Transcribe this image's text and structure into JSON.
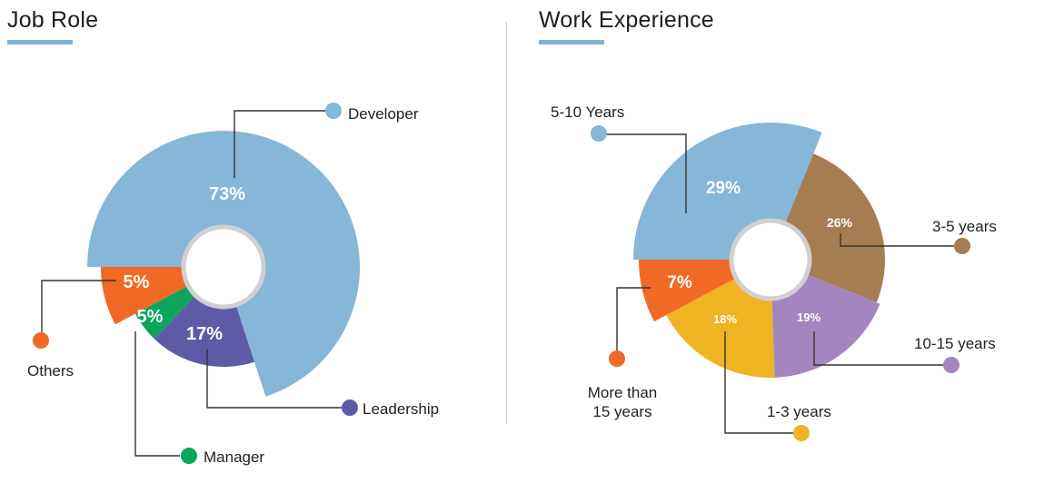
{
  "panels": {
    "left": {
      "title": "Job Role"
    },
    "right": {
      "title": "Work Experience"
    }
  },
  "colors": {
    "accent_bar": "#7fb2d4",
    "hole_ring": "#d0d0d0",
    "leader": "#333333"
  },
  "chart_data": [
    {
      "type": "pie",
      "title": "Job Role",
      "slices": [
        {
          "label": "Developer",
          "value": 73,
          "pct_label": "73%",
          "color": "#86b6d8"
        },
        {
          "label": "Leadership",
          "value": 17,
          "pct_label": "17%",
          "color": "#5f5aa8"
        },
        {
          "label": "Manager",
          "value": 5,
          "pct_label": "5%",
          "color": "#0ca55a"
        },
        {
          "label": "Others",
          "value": 5,
          "pct_label": "5%",
          "color": "#f06a25"
        }
      ]
    },
    {
      "type": "pie",
      "title": "Work Experience",
      "slices": [
        {
          "label": "5-10 Years",
          "value": 29,
          "pct_label": "29%",
          "color": "#86b6d8"
        },
        {
          "label": "3-5 years",
          "value": 26,
          "pct_label": "26%",
          "color": "#a67c52"
        },
        {
          "label": "10-15 years",
          "value": 19,
          "pct_label": "19%",
          "color": "#a386bf"
        },
        {
          "label": "1-3 years",
          "value": 18,
          "pct_label": "18%",
          "color": "#f0b323"
        },
        {
          "label": "More than 15 years",
          "label_lines": [
            "More than",
            "15 years"
          ],
          "value": 7,
          "pct_label": "7%",
          "color": "#f06a25"
        }
      ]
    }
  ]
}
